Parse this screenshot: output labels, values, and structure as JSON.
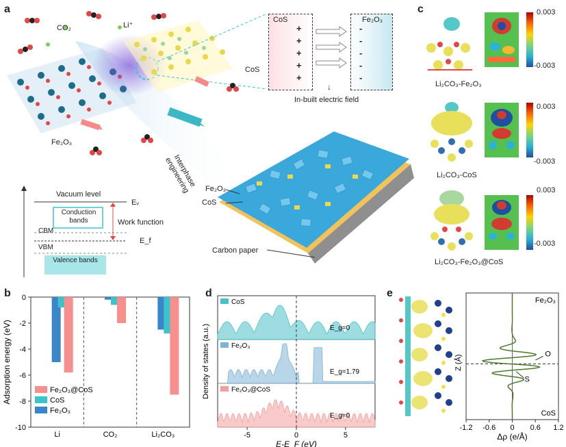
{
  "panel_labels": {
    "a": "a",
    "b": "b",
    "c": "c",
    "d": "d",
    "e": "e"
  },
  "panel_a": {
    "co2": "CO₂",
    "li": "Li⁺",
    "cos_crystal": "CoS",
    "fe2o3_crystal": "Fe₂O₃",
    "interphase": "Interphase engineering",
    "field_box_left": "CoS",
    "field_box_right": "Fe₂O₃",
    "field_plus": "+",
    "field_minus": "-",
    "field_caption": "In-built electric field",
    "band": {
      "vacuum": "Vacuum level",
      "ev": "Eᵥ",
      "conduction": "Conduction bands",
      "work_function": "Work function",
      "cbm": "CBM",
      "ef": "E_f",
      "vbm": "VBM",
      "valence": "Valence bands"
    },
    "electrode": {
      "fe2o3": "Fe₂O₃",
      "cos": "CoS",
      "carbon": "Carbon paper"
    }
  },
  "panel_c": {
    "items": [
      {
        "label": "Li₂CO₃-Fe₂O₃",
        "max": "0.003",
        "min": "-0.003"
      },
      {
        "label": "Li₂CO₃-CoS",
        "max": "0.003",
        "min": "-0.003"
      },
      {
        "label": "Li₂CO₃-Fe₂O₃@CoS",
        "max": "0.003",
        "min": "-0.003"
      }
    ]
  },
  "chart_data": [
    {
      "type": "bar",
      "ylabel": "Adsorption energy (eV)",
      "categories": [
        "Li",
        "CO₂",
        "Li₂CO₃"
      ],
      "ylim": [
        -10,
        0
      ],
      "yticks": [
        0,
        -2,
        -4,
        -6,
        -8,
        -10
      ],
      "legend_position": "bottom-left",
      "series": [
        {
          "name": "Fe₂O₃",
          "color": "#3b86c8",
          "values": [
            -5.0,
            -0.2,
            -2.5
          ]
        },
        {
          "name": "CoS",
          "color": "#3cc4cc",
          "values": [
            -0.8,
            -0.6,
            -2.8
          ]
        },
        {
          "name": "Fe₂O₃@CoS",
          "color": "#f7908c",
          "values": [
            -5.8,
            -2.0,
            -7.5
          ]
        }
      ]
    },
    {
      "type": "area",
      "xlabel": "E-E_F (eV)",
      "ylabel": "Density of states (a.u.)",
      "xlim": [
        -8,
        8
      ],
      "xticks": [
        -5,
        0,
        5
      ],
      "panels": [
        {
          "name": "CoS",
          "color": "#4cc0c8",
          "gap_label": "E_g=0"
        },
        {
          "name": "Fe₂O₃",
          "color": "#7fb3d5",
          "gap_label": "E_g=1.79"
        },
        {
          "name": "Fe₂O₃@CoS",
          "color": "#f29e9e",
          "gap_label": "E_g=0"
        }
      ]
    },
    {
      "type": "line",
      "xlabel": "Δρ (e/Å)",
      "ylabel": "Z (Å)",
      "xlim": [
        -1.2,
        1.2
      ],
      "xticks": [
        "-1.2",
        "-0.6",
        "0",
        "0.6",
        "1.2"
      ],
      "top_label": "Fe₂O₃",
      "bottom_label": "CoS",
      "annotations": [
        "O",
        "S"
      ],
      "line_color": "#4a7a2c"
    }
  ]
}
